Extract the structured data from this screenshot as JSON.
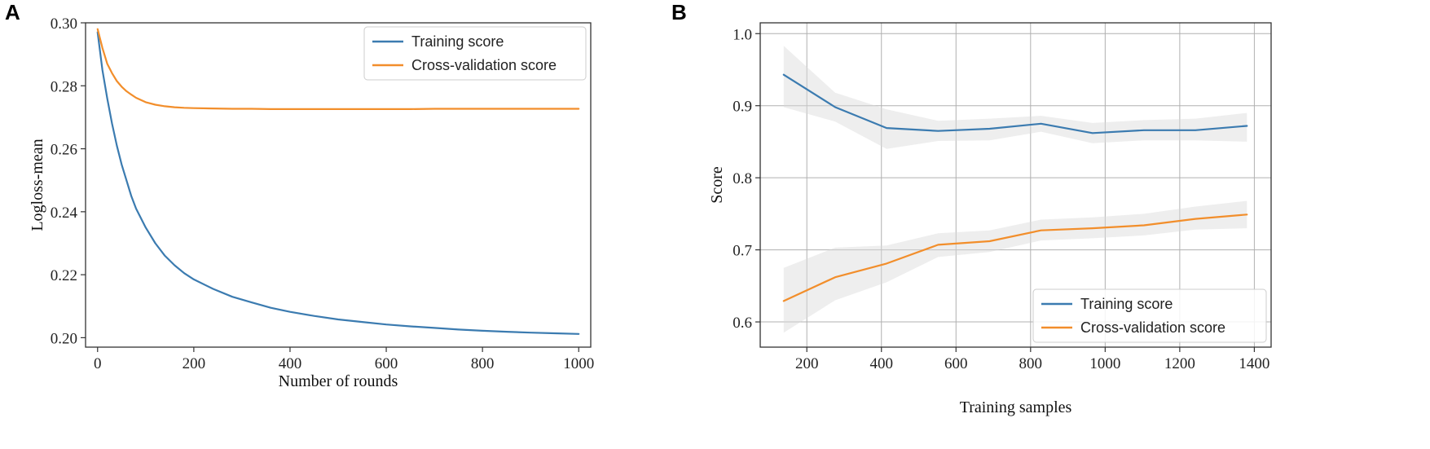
{
  "colors": {
    "training": "#3b7bb0",
    "cv": "#f28e2b",
    "band": "#d9d9d9"
  },
  "chart_data": [
    {
      "panel_label": "A",
      "type": "line",
      "title": "",
      "xlabel": "Number of rounds",
      "ylabel": "Logloss-mean",
      "xlim": [
        -25,
        1025
      ],
      "ylim": [
        0.197,
        0.3
      ],
      "xticks": [
        0,
        200,
        400,
        600,
        800,
        1000
      ],
      "yticks": [
        0.2,
        0.22,
        0.24,
        0.26,
        0.28,
        0.3
      ],
      "xtick_labels": [
        "0",
        "200",
        "400",
        "600",
        "800",
        "1000"
      ],
      "ytick_labels": [
        "0.20",
        "0.22",
        "0.24",
        "0.26",
        "0.28",
        "0.30"
      ],
      "grid": false,
      "legend_position": "top-right",
      "series": [
        {
          "name": "Training score",
          "color_key": "training",
          "x": [
            0,
            10,
            20,
            30,
            40,
            50,
            60,
            70,
            80,
            100,
            120,
            140,
            160,
            180,
            200,
            240,
            280,
            320,
            360,
            400,
            450,
            500,
            550,
            600,
            650,
            700,
            750,
            800,
            850,
            900,
            950,
            1000
          ],
          "y": [
            0.297,
            0.285,
            0.276,
            0.268,
            0.261,
            0.255,
            0.25,
            0.245,
            0.241,
            0.235,
            0.23,
            0.226,
            0.223,
            0.2205,
            0.2185,
            0.2155,
            0.213,
            0.2112,
            0.2095,
            0.2082,
            0.2069,
            0.2058,
            0.205,
            0.2042,
            0.2036,
            0.2031,
            0.2026,
            0.2022,
            0.2019,
            0.2016,
            0.2014,
            0.2012
          ]
        },
        {
          "name": "Cross-validation score",
          "color_key": "cv",
          "x": [
            0,
            10,
            20,
            30,
            40,
            50,
            60,
            70,
            80,
            100,
            120,
            140,
            160,
            180,
            200,
            240,
            280,
            320,
            360,
            400,
            450,
            500,
            550,
            600,
            650,
            700,
            750,
            800,
            850,
            900,
            950,
            1000
          ],
          "y": [
            0.298,
            0.292,
            0.287,
            0.284,
            0.2815,
            0.2797,
            0.2783,
            0.2772,
            0.2762,
            0.2748,
            0.274,
            0.2735,
            0.2732,
            0.273,
            0.2729,
            0.2728,
            0.2727,
            0.2727,
            0.2726,
            0.2726,
            0.2726,
            0.2726,
            0.2726,
            0.2726,
            0.2726,
            0.2727,
            0.2727,
            0.2727,
            0.2727,
            0.2727,
            0.2727,
            0.2727
          ]
        }
      ]
    },
    {
      "panel_label": "B",
      "type": "line",
      "title": "",
      "xlabel": "Training samples",
      "ylabel": "Score",
      "xlim": [
        75,
        1445
      ],
      "ylim": [
        0.565,
        1.015
      ],
      "xticks": [
        200,
        400,
        600,
        800,
        1000,
        1200,
        1400
      ],
      "yticks": [
        0.6,
        0.7,
        0.8,
        0.9,
        1.0
      ],
      "xtick_labels": [
        "200",
        "400",
        "600",
        "800",
        "1000",
        "1200",
        "1400"
      ],
      "ytick_labels": [
        "0.6",
        "0.7",
        "0.8",
        "0.9",
        "1.0"
      ],
      "grid": true,
      "legend_position": "bottom-right",
      "series": [
        {
          "name": "Training score",
          "color_key": "training",
          "x": [
            138,
            276,
            414,
            552,
            690,
            828,
            966,
            1104,
            1242,
            1380
          ],
          "y": [
            0.943,
            0.898,
            0.869,
            0.865,
            0.868,
            0.875,
            0.862,
            0.866,
            0.866,
            0.872
          ],
          "band_lower": [
            0.898,
            0.878,
            0.84,
            0.851,
            0.852,
            0.864,
            0.848,
            0.852,
            0.852,
            0.85
          ],
          "band_upper": [
            0.983,
            0.918,
            0.895,
            0.879,
            0.882,
            0.886,
            0.876,
            0.88,
            0.882,
            0.89
          ]
        },
        {
          "name": "Cross-validation score",
          "color_key": "cv",
          "x": [
            138,
            276,
            414,
            552,
            690,
            828,
            966,
            1104,
            1242,
            1380
          ],
          "y": [
            0.629,
            0.662,
            0.681,
            0.707,
            0.712,
            0.727,
            0.73,
            0.734,
            0.743,
            0.749
          ],
          "band_lower": [
            0.585,
            0.63,
            0.655,
            0.69,
            0.697,
            0.713,
            0.716,
            0.72,
            0.728,
            0.73
          ],
          "band_upper": [
            0.675,
            0.703,
            0.706,
            0.723,
            0.727,
            0.742,
            0.745,
            0.75,
            0.76,
            0.768
          ]
        }
      ]
    }
  ]
}
